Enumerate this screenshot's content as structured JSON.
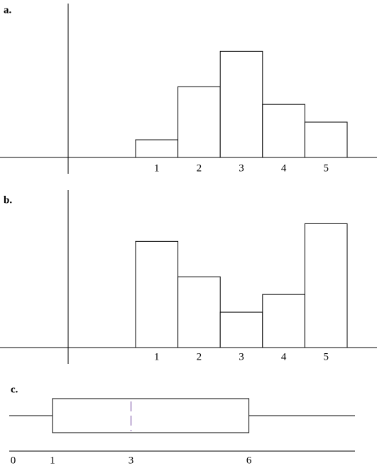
{
  "chart_data": [
    {
      "type": "bar",
      "title": "a.",
      "categories": [
        "1",
        "2",
        "3",
        "4",
        "5"
      ],
      "values": [
        1,
        4,
        6,
        3,
        2
      ],
      "ylim": [
        0,
        8.7
      ],
      "color": "#ffffff"
    },
    {
      "type": "bar",
      "title": "b.",
      "categories": [
        "1",
        "2",
        "3",
        "4",
        "5"
      ],
      "values": [
        6,
        4,
        2,
        3,
        7
      ],
      "ylim": [
        0,
        8.9
      ],
      "color": "#ffffff"
    },
    {
      "type": "box",
      "title": "c.",
      "min": -0.1,
      "q1": 1,
      "median": 3,
      "q3": 6,
      "max": 8.7,
      "xlim": [
        -0.1,
        8.7
      ],
      "xticks": [
        0,
        1,
        3,
        6
      ],
      "median_color": "#6a3d9a"
    }
  ]
}
